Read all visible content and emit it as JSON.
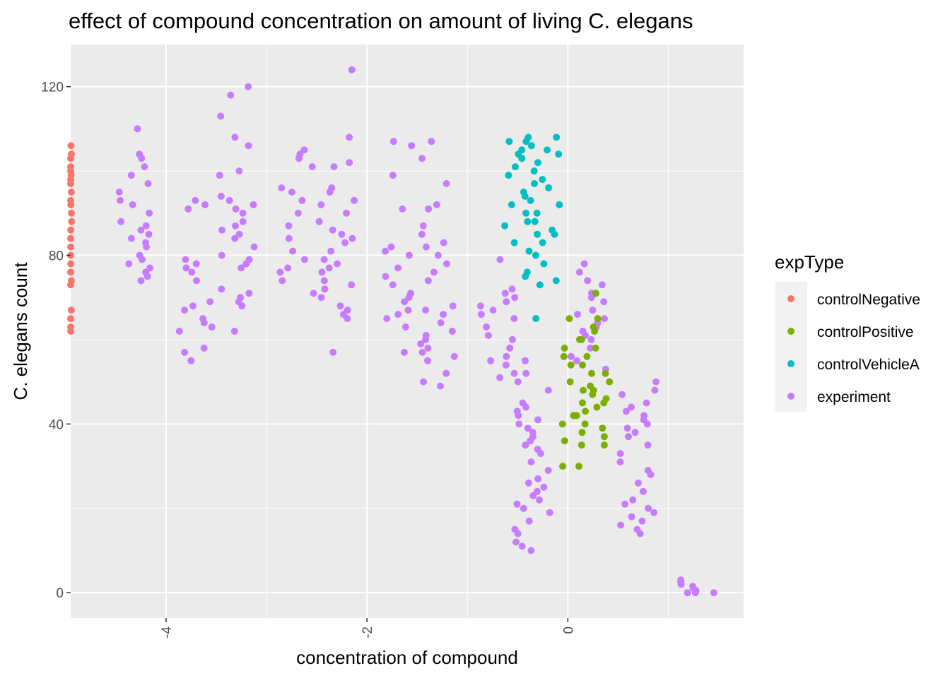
{
  "chart_data": {
    "type": "scatter",
    "title": "effect of compound concentration on amount of living C. elegans",
    "xlabel": "concentration of compound",
    "ylabel": "C. elegans count",
    "xlim": [
      -4.95,
      1.75
    ],
    "ylim": [
      -6,
      130
    ],
    "x_ticks": [
      -4,
      -2,
      0
    ],
    "y_ticks": [
      0,
      40,
      80,
      120
    ],
    "grid": true,
    "legend": {
      "title": "expType",
      "placement": "right",
      "entries": [
        "controlNegative",
        "controlPositive",
        "controlVehicleA",
        "experiment"
      ]
    },
    "colors": {
      "controlNegative": "#F8766D",
      "controlPositive": "#7CAE00",
      "controlVehicleA": "#00BFC4",
      "experiment": "#C77CFF",
      "panel_background": "#EBEBEB",
      "grid_line": "#FFFFFF"
    },
    "series": [
      {
        "name": "controlNegative",
        "x": -4.95,
        "y": [
          106,
          104,
          103,
          101,
          100,
          99,
          98,
          97,
          95,
          93,
          92,
          90,
          88,
          86,
          84,
          82,
          80,
          78,
          76,
          74,
          73,
          67,
          65,
          63,
          62
        ]
      },
      {
        "name": "controlPositive",
        "groups": [
          {
            "x": 0.1,
            "y": [
              65,
              62,
              60,
              58,
              56,
              54,
              52,
              50,
              49,
              48,
              47,
              45,
              43,
              42,
              40,
              38,
              36,
              35,
              30
            ]
          },
          {
            "x": 0.25,
            "y": [
              71,
              65,
              63,
              60,
              58,
              56,
              54,
              52,
              50,
              48,
              46,
              45,
              44,
              42,
              40,
              39,
              37,
              35,
              30
            ]
          }
        ]
      },
      {
        "name": "controlVehicleA",
        "groups": [
          {
            "x": -0.45,
            "y": [
              108,
              107,
              106,
              105,
              104,
              103,
              101,
              99,
              97,
              95,
              93,
              92,
              90,
              88,
              87,
              85,
              83,
              81
            ]
          },
          {
            "x": -0.25,
            "y": [
              108,
              107,
              105,
              104,
              102,
              100,
              98,
              96,
              94,
              92,
              90,
              88,
              86,
              85,
              83,
              80,
              78,
              76,
              75,
              74,
              73,
              65
            ]
          }
        ]
      },
      {
        "name": "experiment",
        "groups": [
          {
            "x": -4.3,
            "y": [
              110,
              104,
              103,
              101,
              99,
              97,
              95,
              93,
              92,
              90,
              88,
              87,
              86,
              85,
              84,
              83,
              82,
              80,
              79,
              78,
              77,
              76,
              75,
              74
            ]
          },
          {
            "x": -3.7,
            "y": [
              93,
              92,
              91,
              79,
              78,
              77,
              76,
              74,
              69,
              68,
              67,
              65,
              64,
              63,
              62,
              58,
              57,
              55
            ]
          },
          {
            "x": -3.3,
            "y": [
              120,
              118,
              113,
              108,
              106,
              100,
              99,
              94,
              93,
              92,
              91,
              90,
              88,
              87,
              86,
              85,
              84,
              82,
              80,
              79,
              78,
              77,
              72,
              71,
              70,
              69,
              68,
              62
            ]
          },
          {
            "x": -2.7,
            "y": [
              105,
              104,
              103,
              101,
              96,
              95,
              93,
              90,
              87,
              84,
              81,
              79,
              77,
              76,
              74,
              71
            ]
          },
          {
            "x": -2.3,
            "y": [
              124,
              108,
              102,
              101,
              96,
              95,
              93,
              92,
              90,
              88,
              86,
              85,
              84,
              83,
              81,
              79,
              78,
              77,
              76,
              74,
              73,
              72,
              70,
              68,
              67,
              66,
              65,
              57
            ]
          },
          {
            "x": -1.7,
            "y": [
              107,
              106,
              99,
              91,
              82,
              81,
              80,
              77,
              75,
              73,
              71,
              70,
              69,
              67,
              66,
              65,
              63,
              57
            ]
          },
          {
            "x": -1.3,
            "y": [
              107,
              103,
              97,
              92,
              91,
              87,
              85,
              83,
              82,
              80,
              78,
              76,
              74,
              68,
              67,
              66,
              64,
              62,
              61,
              60,
              59,
              58,
              57,
              56,
              55,
              52,
              50,
              49
            ]
          },
          {
            "x": -0.7,
            "y": [
              79,
              72,
              71,
              70,
              69,
              68,
              67,
              66,
              65,
              63,
              61,
              60,
              58,
              56,
              55,
              54,
              52,
              51
            ]
          },
          {
            "x": -0.35,
            "y": [
              55,
              52,
              50,
              48,
              45,
              44,
              43,
              42,
              41,
              40,
              39,
              38,
              37,
              36,
              35,
              34,
              33,
              31,
              29,
              27,
              26,
              25,
              24,
              23,
              22,
              21,
              20,
              19,
              17,
              15,
              14,
              12,
              11,
              10
            ]
          },
          {
            "x": 0.2,
            "y": [
              78,
              76,
              74,
              73,
              71,
              70,
              69,
              67,
              66,
              65,
              64,
              63,
              62,
              61,
              60,
              58,
              56,
              55,
              53
            ]
          },
          {
            "x": 0.7,
            "y": [
              50,
              48,
              47,
              45,
              44,
              43,
              42,
              41,
              40,
              39,
              38,
              37,
              35,
              33,
              31,
              29,
              28,
              26,
              24,
              22,
              21,
              20,
              19,
              18,
              17,
              16,
              15,
              14
            ]
          },
          {
            "x": 1.3,
            "y": [
              3,
              2.5,
              2,
              1.5,
              1,
              0.5,
              0,
              0,
              0
            ]
          }
        ]
      }
    ]
  }
}
